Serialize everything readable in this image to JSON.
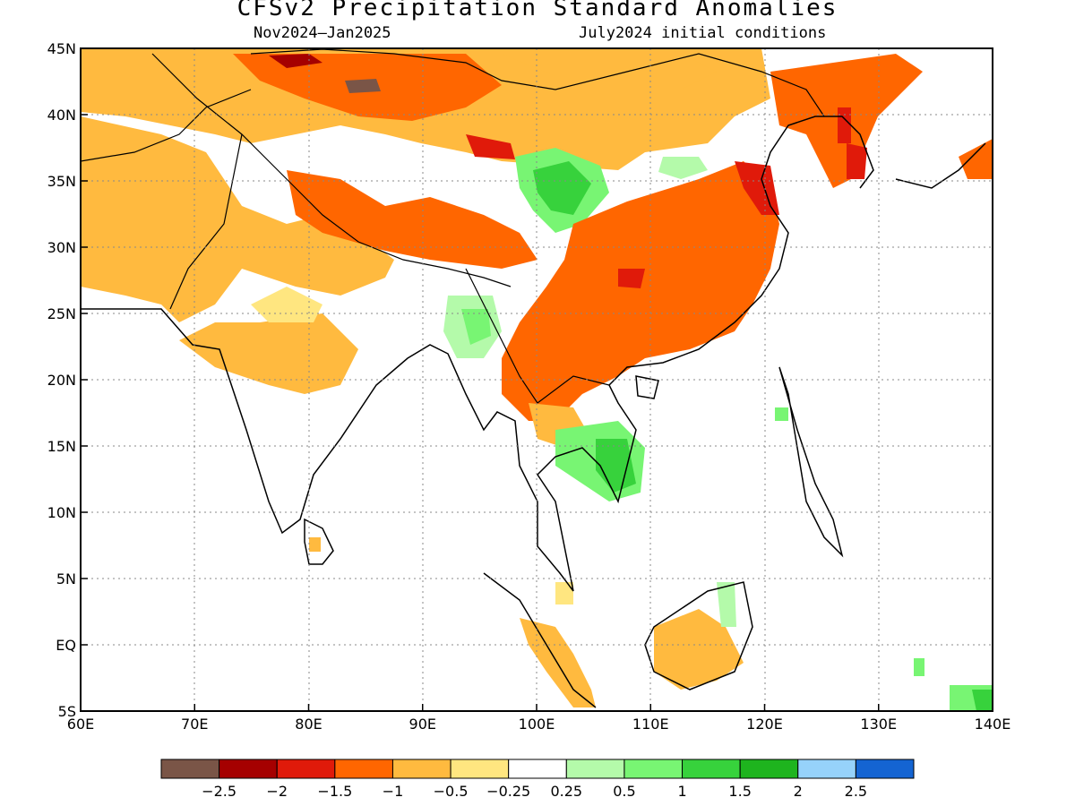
{
  "title": "CFSv2 Precipitation Standard Anomalies",
  "subtitle_left": "Nov2024–Jan2025",
  "subtitle_right": "July2024 initial conditions",
  "map": {
    "lon_range": [
      60,
      140
    ],
    "lat_range": [
      -5,
      45
    ],
    "x_ticks": [
      "60E",
      "70E",
      "80E",
      "90E",
      "100E",
      "110E",
      "120E",
      "130E",
      "140E"
    ],
    "y_ticks": [
      "45N",
      "40N",
      "35N",
      "30N",
      "25N",
      "20N",
      "15N",
      "10N",
      "5N",
      "EQ",
      "5S"
    ],
    "gridlines": "dotted"
  },
  "colorbar": {
    "colors": [
      "#7a5547",
      "#a50000",
      "#e01a0a",
      "#ff6600",
      "#ffba3f",
      "#ffe680",
      "#ffffff",
      "#b4faaa",
      "#78f573",
      "#37d23c",
      "#1eb41e",
      "#96d2fa",
      "#1464d2"
    ],
    "labels": [
      "−2.5",
      "−2",
      "−1.5",
      "−1",
      "−0.5",
      "−0.25",
      "0.25",
      "0.5",
      "1",
      "1.5",
      "2",
      "2.5"
    ]
  }
}
